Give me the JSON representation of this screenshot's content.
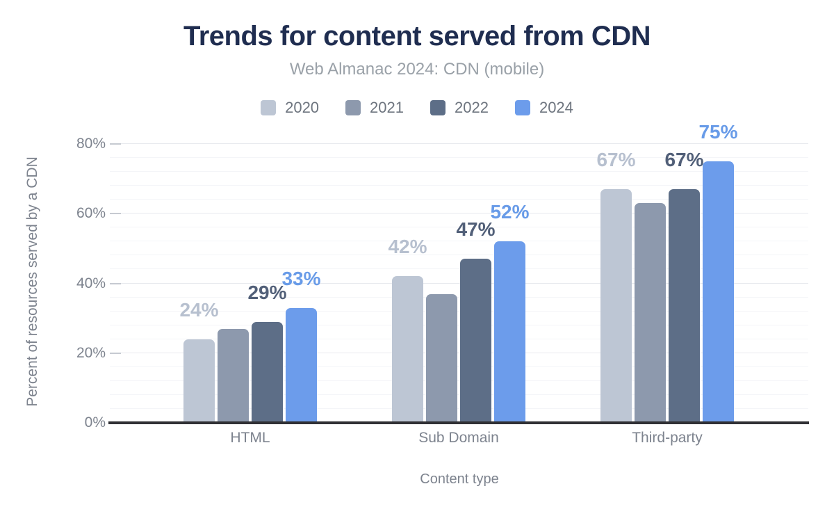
{
  "chart_data": {
    "type": "bar",
    "title": "Trends for content served from CDN",
    "subtitle": "Web Almanac 2024: CDN (mobile)",
    "xlabel": "Content type",
    "ylabel": "Percent of resources served by a CDN",
    "categories": [
      "HTML",
      "Sub Domain",
      "Third-party"
    ],
    "series": [
      {
        "name": "2020",
        "color": "#bdc6d4",
        "label_color": "#b7c0cf",
        "values": [
          24,
          42,
          67
        ],
        "data_labels": [
          "24%",
          "42%",
          "67%"
        ],
        "show_labels": true
      },
      {
        "name": "2021",
        "color": "#8d99ad",
        "label_color": "#8d99ad",
        "values": [
          27,
          37,
          63
        ],
        "data_labels": [],
        "show_labels": false
      },
      {
        "name": "2022",
        "color": "#5d6e87",
        "label_color": "#515f78",
        "values": [
          29,
          47,
          67
        ],
        "data_labels": [
          "29%",
          "47%",
          "67%"
        ],
        "show_labels": true
      },
      {
        "name": "2024",
        "color": "#6c9ceb",
        "label_color": "#689be8",
        "values": [
          33,
          52,
          75
        ],
        "data_labels": [
          "33%",
          "52%",
          "75%"
        ],
        "show_labels": true
      }
    ],
    "ylim": [
      0,
      80
    ],
    "ytick_values": [
      0,
      20,
      40,
      60,
      80
    ],
    "ytick_labels": [
      "0%",
      "20%",
      "40%",
      "60%",
      "80%"
    ],
    "grid": "horizontal minor every 4%, major every 20%",
    "legend_position": "top"
  },
  "colors": {
    "title": "#1f2d50",
    "subtitle": "#9aa1a8",
    "axis_text": "#7d838e",
    "axis_line": "#313135",
    "background": "#ffffff"
  }
}
